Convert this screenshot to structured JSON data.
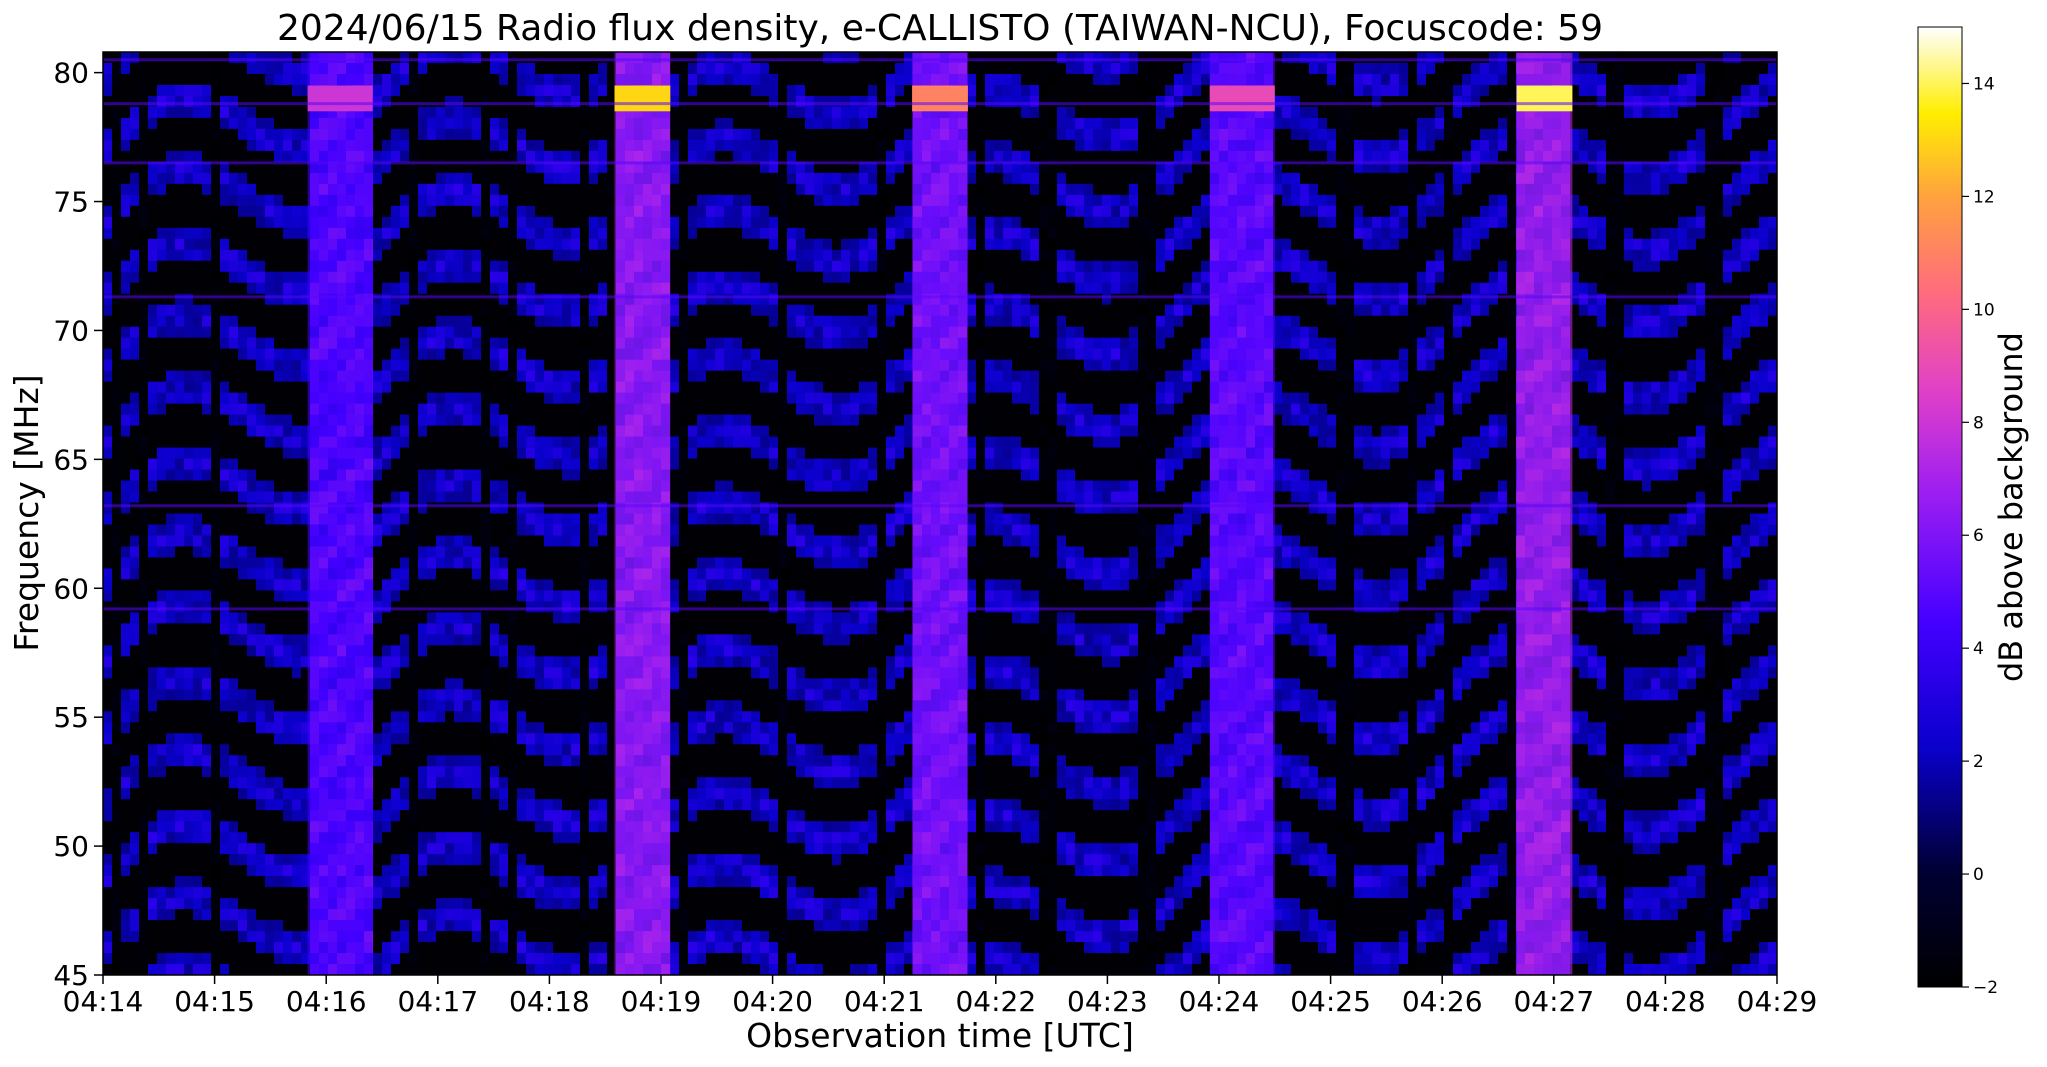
{
  "chart_data": {
    "type": "heatmap",
    "title": "2024/06/15  Radio flux density, e-CALLISTO (TAIWAN-NCU), Focuscode: 59",
    "xlabel": "Observation time [UTC]",
    "ylabel": "Frequency [MHz]",
    "colorbar_label": "dB above background",
    "colormap": "gnuplot2",
    "x_ticks": [
      "04:14",
      "04:15",
      "04:16",
      "04:17",
      "04:18",
      "04:19",
      "04:20",
      "04:21",
      "04:22",
      "04:23",
      "04:24",
      "04:25",
      "04:26",
      "04:27",
      "04:28",
      "04:29"
    ],
    "x_range": [
      "04:14",
      "04:29"
    ],
    "y_ticks": [
      45,
      50,
      55,
      60,
      65,
      70,
      75,
      80
    ],
    "y_range": [
      45,
      80.8
    ],
    "colorbar_ticks": [
      -2,
      0,
      2,
      4,
      6,
      8,
      10,
      12,
      14
    ],
    "colorbar_range": [
      -2,
      15
    ],
    "calibration_bursts": [
      {
        "start": "04:15:50",
        "end": "04:16:25",
        "peak_db": 8
      },
      {
        "start": "04:18:35",
        "end": "04:19:05",
        "peak_db": 13
      },
      {
        "start": "04:21:15",
        "end": "04:21:45",
        "peak_db": 11
      },
      {
        "start": "04:23:55",
        "end": "04:24:30",
        "peak_db": 9
      },
      {
        "start": "04:26:40",
        "end": "04:27:10",
        "peak_db": 14
      }
    ],
    "rfi_bands_mhz": [
      59.2,
      63.2,
      71.3,
      76.5,
      78.8,
      80.5
    ],
    "grid": false
  }
}
